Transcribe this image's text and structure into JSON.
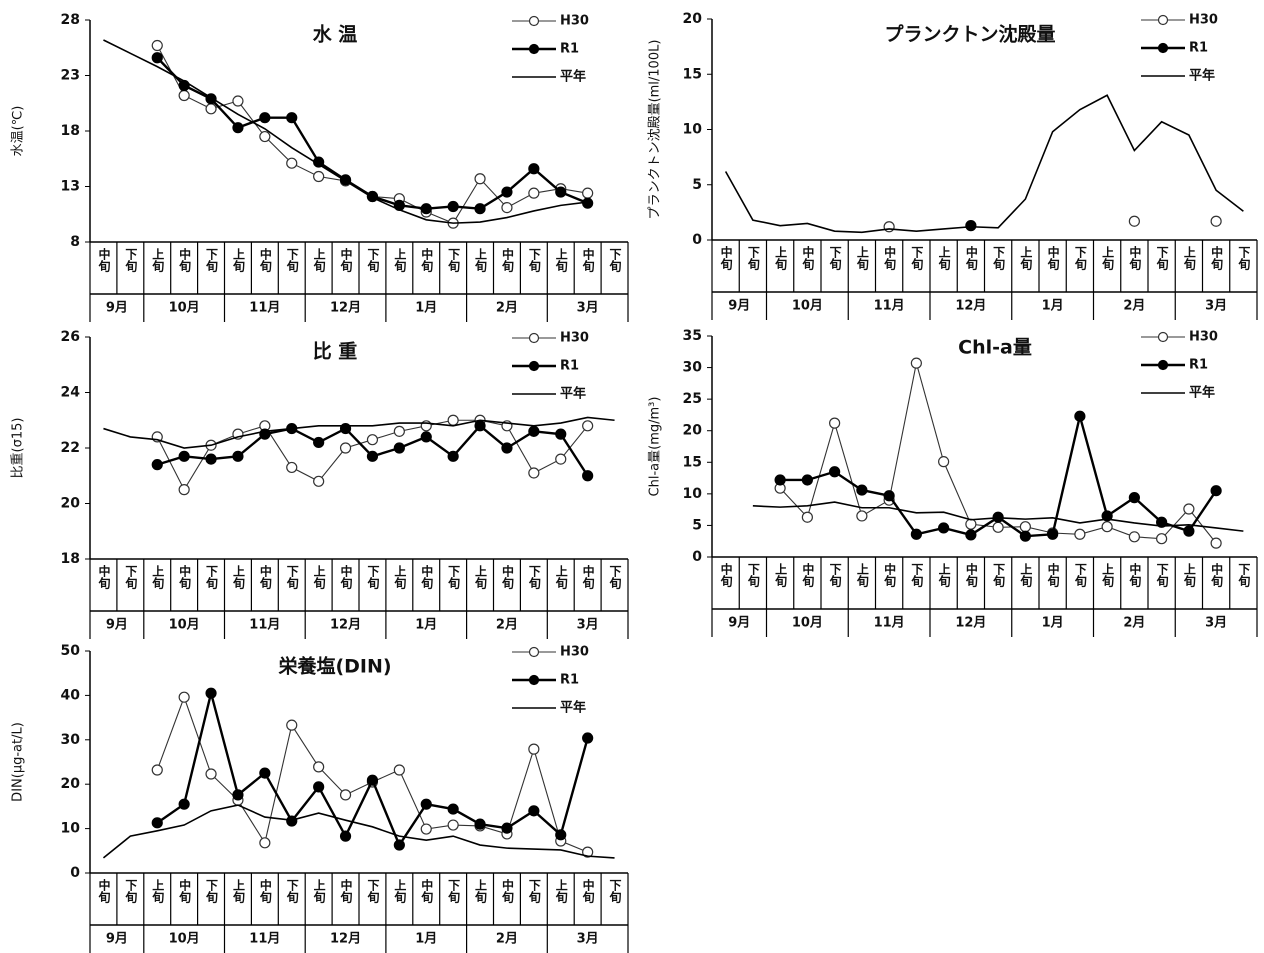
{
  "chart_data": [
    {
      "type": "line",
      "title": "水 温",
      "y_label": "水温(℃)",
      "categories": [
        "中旬",
        "下旬",
        "上旬",
        "中旬",
        "下旬",
        "上旬",
        "中旬",
        "下旬",
        "上旬",
        "中旬",
        "下旬",
        "上旬",
        "中旬",
        "下旬",
        "上旬",
        "中旬",
        "下旬",
        "上旬",
        "中旬",
        "下旬"
      ],
      "months": [
        "9月",
        "10月",
        "11月",
        "12月",
        "1月",
        "2月",
        "3月"
      ],
      "ylim": [
        8,
        28
      ],
      "yticks": [
        8,
        13,
        18,
        23,
        28
      ],
      "series": [
        {
          "name": "H30",
          "color": "#333333",
          "marker": "open",
          "values": [
            null,
            null,
            25.7,
            21.2,
            20.0,
            20.7,
            17.5,
            15.1,
            13.9,
            13.5,
            12.1,
            11.9,
            10.7,
            9.7,
            13.7,
            11.1,
            12.4,
            12.8,
            12.4,
            null
          ]
        },
        {
          "name": "R1",
          "color": "#000000",
          "marker": "filled",
          "values": [
            null,
            null,
            24.6,
            22.1,
            20.9,
            18.3,
            19.2,
            19.2,
            15.2,
            13.6,
            12.1,
            11.3,
            11.0,
            11.2,
            11.0,
            12.5,
            14.6,
            12.5,
            11.5,
            null
          ]
        },
        {
          "name": "平年",
          "color": "#000000",
          "marker": "none",
          "values": [
            26.2,
            25.0,
            23.8,
            22.5,
            21.0,
            19.5,
            18.2,
            16.5,
            15.0,
            13.5,
            12.0,
            10.9,
            10.0,
            9.7,
            9.8,
            10.2,
            10.8,
            11.3,
            11.6,
            null
          ]
        }
      ]
    },
    {
      "type": "line",
      "title": "プランクトン沈殿量",
      "y_label": "プランクトン沈殿量(ml/100L)",
      "categories": [
        "中旬",
        "下旬",
        "上旬",
        "中旬",
        "下旬",
        "上旬",
        "中旬",
        "下旬",
        "上旬",
        "中旬",
        "下旬",
        "上旬",
        "中旬",
        "下旬",
        "上旬",
        "中旬",
        "下旬",
        "上旬",
        "中旬",
        "下旬"
      ],
      "months": [
        "9月",
        "10月",
        "11月",
        "12月",
        "1月",
        "2月",
        "3月"
      ],
      "ylim": [
        0,
        20
      ],
      "yticks": [
        0,
        5,
        10,
        15,
        20
      ],
      "series": [
        {
          "name": "H30",
          "color": "#333333",
          "marker": "open",
          "values": [
            null,
            null,
            null,
            null,
            null,
            null,
            1.2,
            null,
            null,
            null,
            null,
            null,
            null,
            null,
            null,
            1.7,
            null,
            null,
            1.7,
            null
          ]
        },
        {
          "name": "R1",
          "color": "#000000",
          "marker": "filled",
          "values": [
            null,
            null,
            null,
            null,
            null,
            null,
            null,
            null,
            null,
            1.3,
            null,
            null,
            null,
            null,
            null,
            null,
            null,
            null,
            null,
            null
          ]
        },
        {
          "name": "平年",
          "color": "#000000",
          "marker": "none",
          "values": [
            6.2,
            1.8,
            1.3,
            1.5,
            0.8,
            0.7,
            1.0,
            0.8,
            1.0,
            1.2,
            1.1,
            3.7,
            9.8,
            11.8,
            13.1,
            8.1,
            10.7,
            9.5,
            4.5,
            2.6
          ]
        }
      ]
    },
    {
      "type": "line",
      "title": "比 重",
      "y_label": "比重(σ15)",
      "categories": [
        "中旬",
        "下旬",
        "上旬",
        "中旬",
        "下旬",
        "上旬",
        "中旬",
        "下旬",
        "上旬",
        "中旬",
        "下旬",
        "上旬",
        "中旬",
        "下旬",
        "上旬",
        "中旬",
        "下旬",
        "上旬",
        "中旬",
        "下旬"
      ],
      "months": [
        "9月",
        "10月",
        "11月",
        "12月",
        "1月",
        "2月",
        "3月"
      ],
      "ylim": [
        18,
        26
      ],
      "yticks": [
        18,
        20,
        22,
        24,
        26
      ],
      "series": [
        {
          "name": "H30",
          "color": "#333333",
          "marker": "open",
          "values": [
            null,
            null,
            22.4,
            20.5,
            22.1,
            22.5,
            22.8,
            21.3,
            20.8,
            22.0,
            22.3,
            22.6,
            22.8,
            23.0,
            23.0,
            22.8,
            21.1,
            21.6,
            22.8,
            null
          ]
        },
        {
          "name": "R1",
          "color": "#000000",
          "marker": "filled",
          "values": [
            null,
            null,
            21.4,
            21.7,
            21.6,
            21.7,
            22.5,
            22.7,
            22.2,
            22.7,
            21.7,
            22.0,
            22.4,
            21.7,
            22.8,
            22.0,
            22.6,
            22.5,
            21.0,
            null
          ]
        },
        {
          "name": "平年",
          "color": "#000000",
          "marker": "none",
          "values": [
            22.7,
            22.4,
            22.3,
            22.0,
            22.1,
            22.4,
            22.6,
            22.7,
            22.8,
            22.8,
            22.8,
            22.9,
            22.9,
            22.8,
            23.0,
            22.9,
            22.8,
            22.9,
            23.1,
            23.0
          ]
        }
      ]
    },
    {
      "type": "line",
      "title": "Chl-a量",
      "y_label": "Chl-a量(mg/m³)",
      "categories": [
        "中旬",
        "下旬",
        "上旬",
        "中旬",
        "下旬",
        "上旬",
        "中旬",
        "下旬",
        "上旬",
        "中旬",
        "下旬",
        "上旬",
        "中旬",
        "下旬",
        "上旬",
        "中旬",
        "下旬",
        "上旬",
        "中旬",
        "下旬"
      ],
      "months": [
        "9月",
        "10月",
        "11月",
        "12月",
        "1月",
        "2月",
        "3月"
      ],
      "ylim": [
        0,
        35
      ],
      "yticks": [
        0,
        5,
        10,
        15,
        20,
        25,
        30,
        35
      ],
      "series": [
        {
          "name": "H30",
          "color": "#333333",
          "marker": "open",
          "values": [
            null,
            null,
            10.9,
            6.3,
            21.2,
            6.5,
            9.0,
            30.7,
            15.1,
            5.2,
            4.7,
            4.8,
            3.8,
            3.6,
            4.8,
            3.2,
            2.9,
            7.6,
            2.2,
            null
          ]
        },
        {
          "name": "R1",
          "color": "#000000",
          "marker": "filled",
          "values": [
            null,
            null,
            12.2,
            12.2,
            13.5,
            10.6,
            9.7,
            3.6,
            4.6,
            3.5,
            6.3,
            3.3,
            3.6,
            22.3,
            6.5,
            9.4,
            5.5,
            4.1,
            10.5,
            null
          ]
        },
        {
          "name": "平年",
          "color": "#000000",
          "marker": "none",
          "values": [
            null,
            8.1,
            7.9,
            8.1,
            8.7,
            7.8,
            7.8,
            7.0,
            7.1,
            5.9,
            6.2,
            6.0,
            6.2,
            5.4,
            6.0,
            5.4,
            4.9,
            5.1,
            4.6,
            4.1
          ]
        }
      ]
    },
    {
      "type": "line",
      "title": "栄養塩(DIN)",
      "y_label": "DIN(μg-at/L)",
      "categories": [
        "中旬",
        "下旬",
        "上旬",
        "中旬",
        "下旬",
        "上旬",
        "中旬",
        "下旬",
        "上旬",
        "中旬",
        "下旬",
        "上旬",
        "中旬",
        "下旬",
        "上旬",
        "中旬",
        "下旬",
        "上旬",
        "中旬",
        "下旬"
      ],
      "months": [
        "9月",
        "10月",
        "11月",
        "12月",
        "1月",
        "2月",
        "3月"
      ],
      "ylim": [
        0,
        50
      ],
      "yticks": [
        0,
        10,
        20,
        30,
        40,
        50
      ],
      "series": [
        {
          "name": "H30",
          "color": "#333333",
          "marker": "open",
          "values": [
            null,
            null,
            23.2,
            39.6,
            22.3,
            16.4,
            6.8,
            33.3,
            23.9,
            17.6,
            20.5,
            23.2,
            9.9,
            10.8,
            10.6,
            8.8,
            27.9,
            7.2,
            4.7,
            null
          ]
        },
        {
          "name": "R1",
          "color": "#000000",
          "marker": "filled",
          "values": [
            null,
            null,
            11.3,
            15.5,
            40.5,
            17.6,
            22.5,
            11.7,
            19.4,
            8.3,
            20.9,
            6.3,
            15.5,
            14.4,
            11.0,
            10.1,
            14.0,
            8.6,
            30.4,
            null
          ]
        },
        {
          "name": "平年",
          "color": "#000000",
          "marker": "none",
          "values": [
            3.4,
            8.3,
            9.5,
            10.8,
            14.0,
            15.3,
            12.6,
            11.9,
            13.5,
            11.9,
            10.4,
            8.3,
            7.4,
            8.3,
            6.3,
            5.6,
            5.4,
            5.2,
            3.8,
            3.4
          ]
        }
      ]
    }
  ]
}
